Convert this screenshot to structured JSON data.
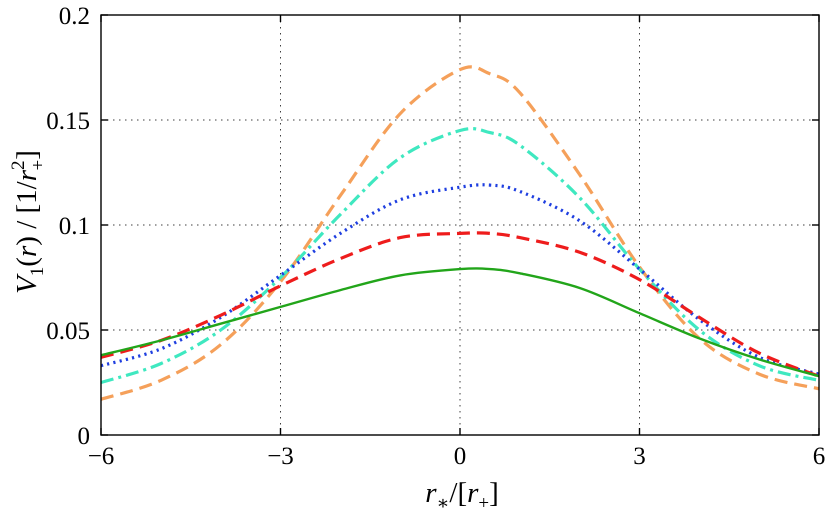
{
  "chart_data": {
    "type": "line",
    "title": "",
    "xlabel": "r_*/[r_+]",
    "ylabel": "V_1(r) / [1/r_+^2]",
    "xlim": [
      -6,
      6
    ],
    "ylim": [
      0,
      0.2
    ],
    "grid": true,
    "x_ticks": [
      -6,
      -3,
      0,
      3,
      6
    ],
    "x_tick_labels": [
      "−6",
      "−3",
      "0",
      "3",
      "6"
    ],
    "y_ticks": [
      0,
      0.05,
      0.1,
      0.15,
      0.2
    ],
    "y_tick_labels": [
      "0",
      "0.05",
      "0.1",
      "0.15",
      "0.2"
    ],
    "series": [
      {
        "name": "orange-dashed",
        "color": "#f5a05a",
        "style": "dashed",
        "x": [
          -6,
          -5,
          -4,
          -3,
          -2,
          -1,
          0,
          0.5,
          1,
          2,
          3,
          4,
          5,
          6
        ],
        "y": [
          0.017,
          0.026,
          0.043,
          0.073,
          0.114,
          0.153,
          0.174,
          0.172,
          0.163,
          0.124,
          0.08,
          0.046,
          0.029,
          0.022
        ]
      },
      {
        "name": "aquamarine-dashdot",
        "color": "#3fe8c0",
        "style": "dashdot",
        "x": [
          -6,
          -5,
          -4,
          -3,
          -2,
          -1,
          0,
          0.5,
          1,
          2,
          3,
          4,
          5,
          6
        ],
        "y": [
          0.025,
          0.034,
          0.05,
          0.075,
          0.105,
          0.132,
          0.145,
          0.144,
          0.138,
          0.113,
          0.079,
          0.05,
          0.033,
          0.026
        ]
      },
      {
        "name": "blue-dotted",
        "color": "#1f3fe0",
        "style": "dotted",
        "x": [
          -6,
          -5,
          -4,
          -3,
          -2,
          -1,
          0,
          0.5,
          1,
          2,
          3,
          4,
          5,
          6
        ],
        "y": [
          0.033,
          0.041,
          0.056,
          0.076,
          0.096,
          0.112,
          0.118,
          0.119,
          0.116,
          0.102,
          0.079,
          0.055,
          0.037,
          0.029
        ]
      },
      {
        "name": "red-dashed",
        "color": "#ee1c1c",
        "style": "dashed",
        "x": [
          -6,
          -5,
          -4,
          -3,
          -2,
          -1,
          0,
          0.5,
          1,
          2,
          3,
          4,
          5,
          6
        ],
        "y": [
          0.037,
          0.045,
          0.057,
          0.071,
          0.084,
          0.094,
          0.096,
          0.096,
          0.094,
          0.087,
          0.074,
          0.056,
          0.039,
          0.028
        ]
      },
      {
        "name": "green-solid",
        "color": "#22a51a",
        "style": "solid",
        "x": [
          -6,
          -5,
          -4,
          -3,
          -2,
          -1,
          0,
          0.5,
          1,
          2,
          3,
          4,
          5,
          6
        ],
        "y": [
          0.038,
          0.045,
          0.053,
          0.061,
          0.069,
          0.076,
          0.079,
          0.079,
          0.077,
          0.07,
          0.058,
          0.046,
          0.036,
          0.028
        ]
      }
    ]
  }
}
